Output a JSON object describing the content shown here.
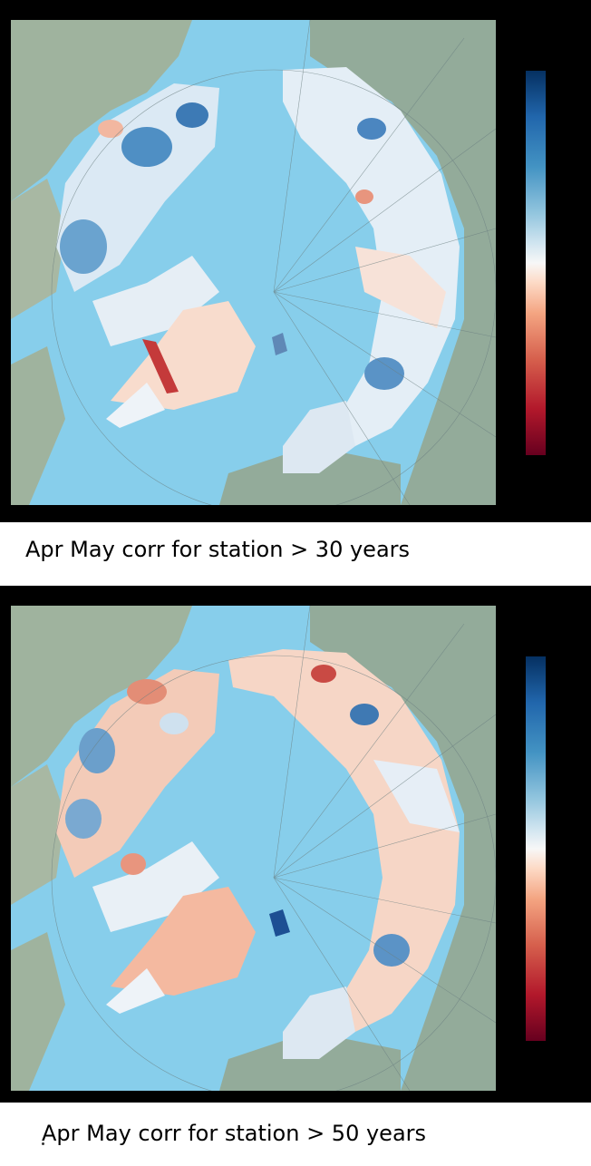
{
  "colors": {
    "ocean": "#87ceeb",
    "land": "#93ab9f",
    "colormap": "RdBu",
    "colormap_top": "#053061",
    "colormap_mid": "#f7f7f7",
    "colormap_bottom": "#67001f",
    "background": "#000000"
  },
  "panels": [
    {
      "caption": "Apr May corr for station > 30 years"
    },
    {
      "caption": "Apr May corr for station > 50 years"
    }
  ]
}
